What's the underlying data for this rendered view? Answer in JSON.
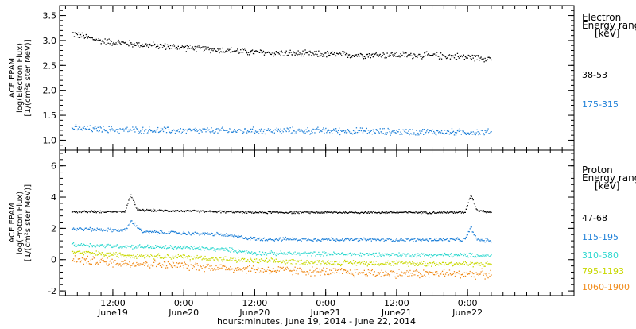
{
  "chart_data": [
    {
      "type": "scatter",
      "panel": "electron",
      "ylabel": [
        "ACE EPAM",
        "log(Electron Flux)",
        "[1/(cm²s ster MeV)]"
      ],
      "ylim": [
        0.8,
        3.7
      ],
      "yticks": [
        1.0,
        1.5,
        2.0,
        2.5,
        3.0,
        3.5
      ],
      "ytick_labels": [
        "1.0",
        "1.5",
        "2.0",
        "2.5",
        "3.0",
        "3.5"
      ],
      "legend_title": [
        "Electron",
        "Energy ranges",
        "[keV]"
      ],
      "series": [
        {
          "name": "38-53",
          "color": "#000000",
          "x": [
            "2014-06-19 05:00",
            "2014-06-19 10:00",
            "2014-06-19 16:00",
            "2014-06-19 22:00",
            "2014-06-20 06:00",
            "2014-06-20 12:00",
            "2014-06-20 20:00",
            "2014-06-21 04:00",
            "2014-06-21 12:00",
            "2014-06-21 20:00",
            "2014-06-22 04:00"
          ],
          "y": [
            3.15,
            3.0,
            2.93,
            2.88,
            2.82,
            2.77,
            2.74,
            2.72,
            2.72,
            2.7,
            2.65
          ]
        },
        {
          "name": "175-315",
          "color": "#1f80d8",
          "x": [
            "2014-06-19 05:00",
            "2014-06-19 12:00",
            "2014-06-20 00:00",
            "2014-06-20 12:00",
            "2014-06-21 00:00",
            "2014-06-21 12:00",
            "2014-06-22 04:00"
          ],
          "y": [
            1.25,
            1.22,
            1.2,
            1.2,
            1.2,
            1.18,
            1.17
          ]
        }
      ]
    },
    {
      "type": "scatter",
      "panel": "proton",
      "ylabel": [
        "ACE EPAM",
        "log(Proton Flux)",
        "[1/(cm²s ster MeV)]"
      ],
      "ylim": [
        -2.3,
        7.0
      ],
      "yticks": [
        -2,
        0,
        2,
        4,
        6
      ],
      "ytick_labels": [
        "-2",
        "0",
        "2",
        "4",
        "6"
      ],
      "legend_title": [
        "Proton",
        "Energy ranges",
        "[keV]"
      ],
      "series": [
        {
          "name": "47-68",
          "color": "#000000",
          "x": [
            "2014-06-19 05:00",
            "2014-06-19 14:00",
            "2014-06-19 15:00",
            "2014-06-19 16:00",
            "2014-06-20 12:00",
            "2014-06-21 12:00",
            "2014-06-21 23:30",
            "2014-06-22 00:30",
            "2014-06-22 01:30",
            "2014-06-22 04:00"
          ],
          "y": [
            3.1,
            3.1,
            4.2,
            3.2,
            3.05,
            3.05,
            3.05,
            4.2,
            3.2,
            3.05
          ]
        },
        {
          "name": "115-195",
          "color": "#1f80d8",
          "x": [
            "2014-06-19 05:00",
            "2014-06-19 14:00",
            "2014-06-19 15:00",
            "2014-06-19 17:00",
            "2014-06-20 06:00",
            "2014-06-20 12:00",
            "2014-06-21 12:00",
            "2014-06-21 23:30",
            "2014-06-22 00:30",
            "2014-06-22 01:30",
            "2014-06-22 04:00"
          ],
          "y": [
            2.0,
            1.9,
            2.5,
            1.8,
            1.65,
            1.35,
            1.3,
            1.3,
            2.1,
            1.3,
            1.25
          ]
        },
        {
          "name": "310-580",
          "color": "#2fd8cf",
          "x": [
            "2014-06-19 05:00",
            "2014-06-19 12:00",
            "2014-06-20 00:00",
            "2014-06-20 08:00",
            "2014-06-20 12:00",
            "2014-06-21 00:00",
            "2014-06-21 12:00",
            "2014-06-22 04:00"
          ],
          "y": [
            1.0,
            0.9,
            0.8,
            0.65,
            0.45,
            0.4,
            0.35,
            0.3
          ]
        },
        {
          "name": "795-1193",
          "color": "#c8d800",
          "x": [
            "2014-06-19 05:00",
            "2014-06-19 12:00",
            "2014-06-20 00:00",
            "2014-06-20 12:00",
            "2014-06-21 00:00",
            "2014-06-21 12:00",
            "2014-06-22 04:00"
          ],
          "y": [
            0.5,
            0.35,
            0.2,
            -0.05,
            -0.15,
            -0.2,
            -0.25
          ]
        },
        {
          "name": "1060-1900",
          "color": "#f08a18",
          "x": [
            "2014-06-19 05:00",
            "2014-06-19 12:00",
            "2014-06-20 00:00",
            "2014-06-20 12:00",
            "2014-06-21 00:00",
            "2014-06-21 12:00",
            "2014-06-22 04:00"
          ],
          "y": [
            0.05,
            -0.15,
            -0.35,
            -0.6,
            -0.75,
            -0.85,
            -0.9
          ]
        }
      ]
    }
  ],
  "x_axis": {
    "xlim": [
      "2014-06-19 03:00",
      "2014-06-22 18:00"
    ],
    "ticks": [
      "2014-06-19 12:00",
      "2014-06-20 00:00",
      "2014-06-20 12:00",
      "2014-06-21 00:00",
      "2014-06-21 12:00",
      "2014-06-22 00:00"
    ],
    "tick_labels": [
      [
        "12:00",
        "June19"
      ],
      [
        "0:00",
        "June20"
      ],
      [
        "12:00",
        "June20"
      ],
      [
        "0:00",
        "June21"
      ],
      [
        "12:00",
        "June21"
      ],
      [
        "0:00",
        "June22"
      ]
    ],
    "xlabel": "hours:minutes, June 19, 2014 - June 22, 2014"
  }
}
